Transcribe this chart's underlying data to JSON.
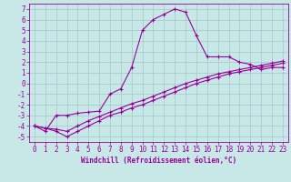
{
  "background_color": "#c8e8e8",
  "grid_color": "#a0c8c8",
  "line_color": "#990099",
  "xlabel": "Windchill (Refroidissement éolien,°C)",
  "xlim": [
    -0.5,
    23.5
  ],
  "ylim": [
    -5.5,
    7.5
  ],
  "yticks": [
    -5,
    -4,
    -3,
    -2,
    -1,
    0,
    1,
    2,
    3,
    4,
    5,
    6,
    7
  ],
  "xticks": [
    0,
    1,
    2,
    3,
    4,
    5,
    6,
    7,
    8,
    9,
    10,
    11,
    12,
    13,
    14,
    15,
    16,
    17,
    18,
    19,
    20,
    21,
    22,
    23
  ],
  "line1_x": [
    0,
    1,
    2,
    3,
    4,
    5,
    6,
    7,
    8,
    9,
    10,
    11,
    12,
    13,
    14,
    15,
    16,
    17,
    18,
    19,
    20,
    21,
    22,
    23
  ],
  "line1_y": [
    -4.0,
    -4.5,
    -3.0,
    -3.0,
    -2.8,
    -2.7,
    -2.6,
    -1.0,
    -0.5,
    1.5,
    5.0,
    6.0,
    6.5,
    7.0,
    6.7,
    4.5,
    2.5,
    2.5,
    2.5,
    2.0,
    1.8,
    1.3,
    1.5,
    1.5
  ],
  "line2_x": [
    0,
    1,
    2,
    3,
    4,
    5,
    6,
    7,
    8,
    9,
    10,
    11,
    12,
    13,
    14,
    15,
    16,
    17,
    18,
    19,
    20,
    21,
    22,
    23
  ],
  "line2_y": [
    -4.0,
    -4.2,
    -4.5,
    -5.0,
    -4.5,
    -4.0,
    -3.5,
    -3.0,
    -2.7,
    -2.3,
    -2.0,
    -1.6,
    -1.2,
    -0.8,
    -0.4,
    0.0,
    0.3,
    0.6,
    0.9,
    1.1,
    1.3,
    1.5,
    1.7,
    1.9
  ],
  "line3_x": [
    0,
    1,
    2,
    3,
    4,
    5,
    6,
    7,
    8,
    9,
    10,
    11,
    12,
    13,
    14,
    15,
    16,
    17,
    18,
    19,
    20,
    21,
    22,
    23
  ],
  "line3_y": [
    -4.0,
    -4.2,
    -4.3,
    -4.5,
    -4.0,
    -3.5,
    -3.1,
    -2.7,
    -2.3,
    -1.9,
    -1.6,
    -1.2,
    -0.8,
    -0.4,
    0.0,
    0.3,
    0.6,
    0.9,
    1.1,
    1.3,
    1.5,
    1.7,
    1.9,
    2.1
  ]
}
